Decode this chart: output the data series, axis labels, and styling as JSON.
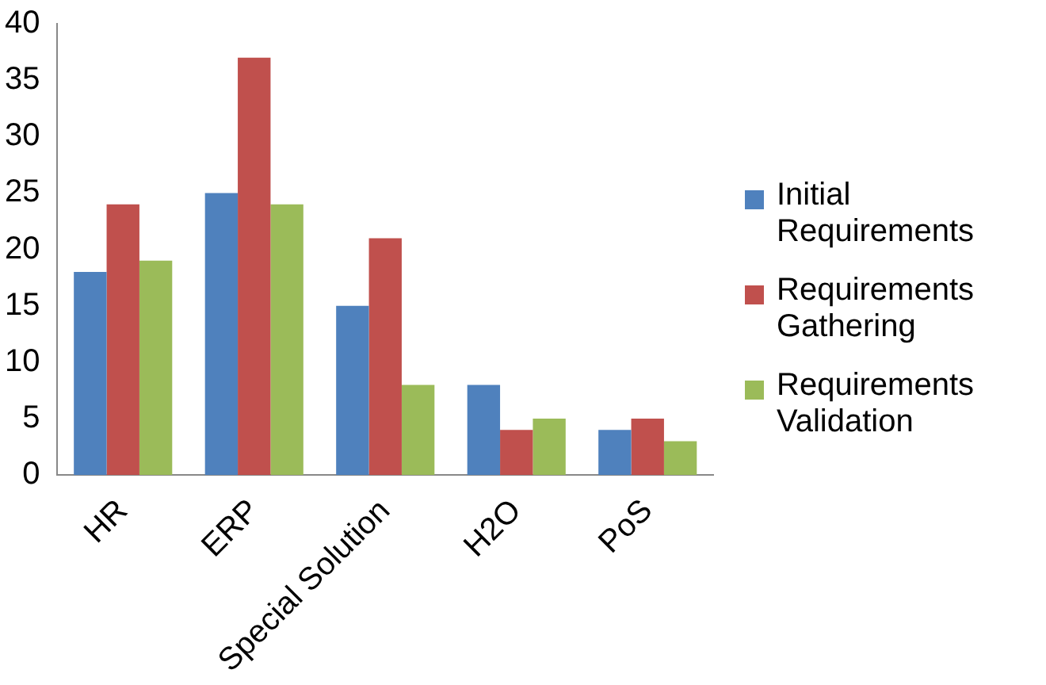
{
  "chart_data": {
    "type": "bar",
    "categories": [
      "HR",
      "ERP",
      "Special Solution",
      "H2O",
      "PoS"
    ],
    "series": [
      {
        "name": "Initial Requirements",
        "color": "#4f81bd",
        "values": [
          18,
          25,
          15,
          8,
          4
        ]
      },
      {
        "name": "Requirements Gathering",
        "color": "#c0504d",
        "values": [
          24,
          37,
          21,
          4,
          5
        ]
      },
      {
        "name": "Requirements Validation",
        "color": "#9bbb59",
        "values": [
          19,
          24,
          8,
          5,
          3
        ]
      }
    ],
    "ylim": [
      0,
      40
    ],
    "yticks": [
      0,
      5,
      10,
      15,
      20,
      25,
      30,
      35,
      40
    ],
    "grid": false,
    "legend": "right"
  }
}
